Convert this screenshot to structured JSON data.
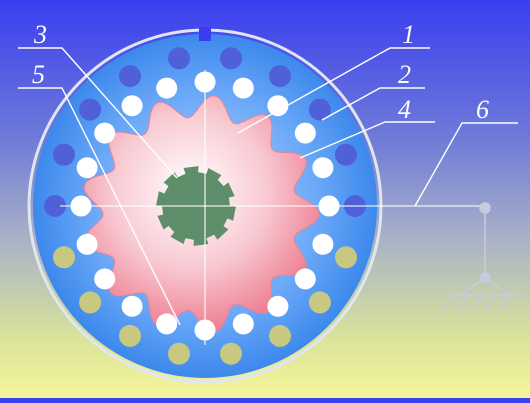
{
  "labels": [
    {
      "id": "1",
      "text": "1"
    },
    {
      "id": "2",
      "text": "2"
    },
    {
      "id": "3",
      "text": "3"
    },
    {
      "id": "4",
      "text": "4"
    },
    {
      "id": "5",
      "text": "5"
    },
    {
      "id": "6",
      "text": "6"
    }
  ],
  "colors": {
    "housing": "#3f8ff0",
    "housing_light": "#8fc0ff",
    "rotor": "#f59aa8",
    "rotor_light": "#ffe6ea",
    "shaft": "#5f8f6a",
    "roller": "#ffffff",
    "hole_top": "#5060d8",
    "hole_bottom": "#c8c880",
    "leader": "#ffffff",
    "support": "#c9cde0"
  }
}
